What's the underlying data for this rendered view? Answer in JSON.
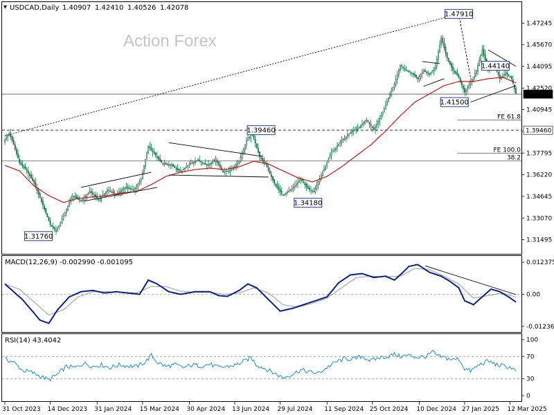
{
  "chart_data": {
    "type": "candlestick",
    "header": {
      "symbol": "USDCAD,Daily",
      "open": "1.40907",
      "high": "1.42410",
      "low": "1.40526",
      "close": "1.42078"
    },
    "watermark": "Action Forex",
    "price_axis": {
      "ylim": [
        1.3072,
        1.4852
      ],
      "ticks": [
        "1.47245",
        "1.45670",
        "1.44095",
        "1.42520",
        "1.40945",
        "1.39370",
        "1.37795",
        "1.36220",
        "1.34645",
        "1.33070",
        "1.31495"
      ],
      "current_price": "1.42078",
      "level_label": "1.39460"
    },
    "date_axis": [
      "31 Oct 2023",
      "14 Dec 2023",
      "31 Jan 2024",
      "15 Mar 2024",
      "30 Apr 2024",
      "13 Jun 2024",
      "29 Jul 2024",
      "11 Sep 2024",
      "25 Oct 2024",
      "10 Dec 2024",
      "27 Jan 2025",
      "12 Mar 2025"
    ],
    "price_anchors": [
      [
        0,
        1.3875
      ],
      [
        3,
        1.3925
      ],
      [
        6,
        1.384
      ],
      [
        10,
        1.371
      ],
      [
        15,
        1.365
      ],
      [
        20,
        1.356
      ],
      [
        26,
        1.34
      ],
      [
        31,
        1.3258
      ],
      [
        35,
        1.321
      ],
      [
        40,
        1.332
      ],
      [
        46,
        1.347
      ],
      [
        52,
        1.343
      ],
      [
        58,
        1.35
      ],
      [
        64,
        1.344
      ],
      [
        70,
        1.351
      ],
      [
        76,
        1.348
      ],
      [
        82,
        1.353
      ],
      [
        88,
        1.351
      ],
      [
        93,
        1.359
      ],
      [
        98,
        1.383
      ],
      [
        103,
        1.376
      ],
      [
        108,
        1.37
      ],
      [
        114,
        1.369
      ],
      [
        120,
        1.364
      ],
      [
        126,
        1.37
      ],
      [
        132,
        1.373
      ],
      [
        138,
        1.369
      ],
      [
        144,
        1.373
      ],
      [
        149,
        1.364
      ],
      [
        155,
        1.366
      ],
      [
        160,
        1.372
      ],
      [
        165,
        1.387
      ],
      [
        169,
        1.392
      ],
      [
        174,
        1.375
      ],
      [
        178,
        1.37
      ],
      [
        184,
        1.356
      ],
      [
        190,
        1.347
      ],
      [
        196,
        1.352
      ],
      [
        202,
        1.359
      ],
      [
        207,
        1.352
      ],
      [
        211,
        1.35
      ],
      [
        217,
        1.364
      ],
      [
        223,
        1.378
      ],
      [
        229,
        1.386
      ],
      [
        235,
        1.392
      ],
      [
        241,
        1.396
      ],
      [
        247,
        1.402
      ],
      [
        252,
        1.395
      ],
      [
        257,
        1.405
      ],
      [
        262,
        1.418
      ],
      [
        266,
        1.428
      ],
      [
        270,
        1.442
      ],
      [
        274,
        1.438
      ],
      [
        278,
        1.436
      ],
      [
        282,
        1.432
      ],
      [
        286,
        1.438
      ],
      [
        290,
        1.435
      ],
      [
        294,
        1.441
      ],
      [
        298,
        1.462
      ],
      [
        302,
        1.447
      ],
      [
        306,
        1.438
      ],
      [
        310,
        1.433
      ],
      [
        314,
        1.422
      ],
      [
        318,
        1.429
      ],
      [
        322,
        1.438
      ],
      [
        326,
        1.453
      ],
      [
        330,
        1.438
      ],
      [
        334,
        1.443
      ],
      [
        338,
        1.432
      ],
      [
        342,
        1.436
      ],
      [
        346,
        1.432
      ],
      [
        349,
        1.421
      ]
    ],
    "ema_anchors": [
      [
        0,
        1.369
      ],
      [
        10,
        1.365
      ],
      [
        20,
        1.354
      ],
      [
        30,
        1.347
      ],
      [
        40,
        1.342
      ],
      [
        50,
        1.345
      ],
      [
        60,
        1.346
      ],
      [
        70,
        1.347
      ],
      [
        80,
        1.349
      ],
      [
        90,
        1.35
      ],
      [
        100,
        1.355
      ],
      [
        110,
        1.361
      ],
      [
        120,
        1.364
      ],
      [
        130,
        1.366
      ],
      [
        140,
        1.367
      ],
      [
        150,
        1.366
      ],
      [
        160,
        1.368
      ],
      [
        170,
        1.372
      ],
      [
        180,
        1.37
      ],
      [
        190,
        1.365
      ],
      [
        200,
        1.36
      ],
      [
        210,
        1.357
      ],
      [
        220,
        1.361
      ],
      [
        230,
        1.368
      ],
      [
        240,
        1.376
      ],
      [
        250,
        1.384
      ],
      [
        260,
        1.394
      ],
      [
        270,
        1.405
      ],
      [
        280,
        1.415
      ],
      [
        290,
        1.421
      ],
      [
        300,
        1.427
      ],
      [
        310,
        1.43
      ],
      [
        320,
        1.43
      ],
      [
        330,
        1.432
      ],
      [
        340,
        1.433
      ],
      [
        349,
        1.429
      ]
    ],
    "annotations": [
      {
        "label": "1.47910",
        "i": 310,
        "price": 1.4791
      },
      {
        "label": "1.44140",
        "i": 335,
        "price": 1.4414
      },
      {
        "label": "1.41500",
        "i": 307,
        "price": 1.415
      },
      {
        "label": "1.39460",
        "i": 175,
        "price": 1.3946
      },
      {
        "label": "1.34180",
        "i": 207,
        "price": 1.3418
      },
      {
        "label": "1.31760",
        "i": 23,
        "price": 1.3176
      }
    ],
    "fib_lines": [
      {
        "label": "FE 61.8",
        "price": 1.402,
        "i_start": 310
      },
      {
        "label": "FE 100.0",
        "price": 1.3778,
        "i_start": 310
      },
      {
        "label": "38.2",
        "price": 1.3722,
        "i_start": 0
      }
    ],
    "hlines": [
      {
        "price": 1.4208,
        "style": "solid"
      },
      {
        "price": 1.3946,
        "style": "dashed"
      },
      {
        "price": 1.3722,
        "style": "solid"
      }
    ],
    "trendlines": [
      {
        "style": "dotted",
        "from": [
          0,
          1.3905
        ],
        "to": [
          310,
          1.4791
        ]
      },
      {
        "style": "solid",
        "from": [
          52,
          1.353
        ],
        "to": [
          100,
          1.364
        ]
      },
      {
        "style": "solid",
        "from": [
          54,
          1.343
        ],
        "to": [
          104,
          1.353
        ]
      },
      {
        "style": "solid",
        "from": [
          112,
          1.3855
        ],
        "to": [
          176,
          1.3755
        ]
      },
      {
        "style": "solid",
        "from": [
          112,
          1.362
        ],
        "to": [
          180,
          1.3605
        ]
      },
      {
        "style": "solid",
        "from": [
          285,
          1.4445
        ],
        "to": [
          297,
          1.443
        ]
      },
      {
        "style": "solid",
        "from": [
          286,
          1.4265
        ],
        "to": [
          300,
          1.432
        ]
      },
      {
        "style": "dashed",
        "from": [
          310,
          1.4791
        ],
        "to": [
          318,
          1.433
        ]
      },
      {
        "style": "solid",
        "from": [
          330,
          1.453
        ],
        "to": [
          349,
          1.441
        ]
      },
      {
        "style": "solid",
        "from": [
          318,
          1.415
        ],
        "to": [
          349,
          1.427
        ]
      }
    ],
    "macd": {
      "label": "MACD(12,26,9) -0.002990 -0.001095",
      "ylim": [
        -0.0135,
        0.0135
      ],
      "ticks": [
        "0.012375",
        "0.00",
        "-0.012367"
      ],
      "main_anchors": [
        [
          0,
          0.004
        ],
        [
          6,
          0.001
        ],
        [
          12,
          -0.002
        ],
        [
          18,
          -0.006
        ],
        [
          24,
          -0.01
        ],
        [
          30,
          -0.0112
        ],
        [
          36,
          -0.006
        ],
        [
          44,
          -0.001
        ],
        [
          52,
          0.001
        ],
        [
          60,
          0.0015
        ],
        [
          68,
          0.0005
        ],
        [
          76,
          0.001
        ],
        [
          84,
          0.0005
        ],
        [
          92,
          0.0
        ],
        [
          98,
          0.0055
        ],
        [
          104,
          0.004
        ],
        [
          112,
          0.001
        ],
        [
          120,
          0.0
        ],
        [
          130,
          0.001
        ],
        [
          140,
          0.001
        ],
        [
          146,
          -0.0005
        ],
        [
          152,
          -0.0008
        ],
        [
          160,
          0.0015
        ],
        [
          166,
          0.004
        ],
        [
          172,
          0.0025
        ],
        [
          180,
          -0.002
        ],
        [
          188,
          -0.0065
        ],
        [
          196,
          -0.0055
        ],
        [
          204,
          -0.004
        ],
        [
          212,
          -0.0025
        ],
        [
          220,
          -0.001
        ],
        [
          228,
          0.0045
        ],
        [
          236,
          0.0075
        ],
        [
          244,
          0.008
        ],
        [
          252,
          0.0065
        ],
        [
          260,
          0.007
        ],
        [
          266,
          0.0055
        ],
        [
          270,
          0.0075
        ],
        [
          276,
          0.0108
        ],
        [
          282,
          0.0115
        ],
        [
          290,
          0.0085
        ],
        [
          298,
          0.007
        ],
        [
          304,
          0.005
        ],
        [
          310,
          0.0025
        ],
        [
          314,
          -0.0025
        ],
        [
          320,
          -0.004
        ],
        [
          326,
          -0.001
        ],
        [
          332,
          0.002
        ],
        [
          338,
          0.001
        ],
        [
          344,
          -0.001
        ],
        [
          349,
          -0.003
        ]
      ],
      "signal_anchors": [
        [
          0,
          0.004
        ],
        [
          10,
          0.002
        ],
        [
          20,
          -0.003
        ],
        [
          30,
          -0.008
        ],
        [
          40,
          -0.006
        ],
        [
          50,
          -0.001
        ],
        [
          60,
          0.001
        ],
        [
          70,
          0.001
        ],
        [
          80,
          0.0008
        ],
        [
          90,
          0.0005
        ],
        [
          100,
          0.003
        ],
        [
          110,
          0.003
        ],
        [
          120,
          0.0012
        ],
        [
          130,
          0.0008
        ],
        [
          140,
          0.0008
        ],
        [
          150,
          0.0
        ],
        [
          160,
          0.0005
        ],
        [
          170,
          0.0025
        ],
        [
          180,
          0.0005
        ],
        [
          190,
          -0.004
        ],
        [
          200,
          -0.005
        ],
        [
          210,
          -0.0035
        ],
        [
          220,
          -0.0015
        ],
        [
          230,
          0.0025
        ],
        [
          240,
          0.0065
        ],
        [
          250,
          0.007
        ],
        [
          260,
          0.0068
        ],
        [
          270,
          0.007
        ],
        [
          280,
          0.01
        ],
        [
          290,
          0.0095
        ],
        [
          300,
          0.007
        ],
        [
          310,
          0.004
        ],
        [
          320,
          -0.0015
        ],
        [
          330,
          -0.0005
        ],
        [
          340,
          0.0005
        ],
        [
          349,
          -0.0011
        ]
      ],
      "trendline": {
        "from": [
          287,
          0.011
        ],
        "to": [
          349,
          -0.0001
        ]
      }
    },
    "rsi": {
      "label": "RSI(14) 43.4042",
      "ylim": [
        0,
        100
      ],
      "ticks": [
        "100",
        "70",
        "30",
        "0"
      ],
      "levels": [
        70,
        30
      ],
      "anchors": [
        [
          0,
          65
        ],
        [
          6,
          60
        ],
        [
          12,
          45
        ],
        [
          18,
          42
        ],
        [
          24,
          35
        ],
        [
          30,
          28
        ],
        [
          36,
          38
        ],
        [
          42,
          52
        ],
        [
          48,
          50
        ],
        [
          54,
          58
        ],
        [
          60,
          52
        ],
        [
          66,
          55
        ],
        [
          72,
          50
        ],
        [
          78,
          55
        ],
        [
          84,
          53
        ],
        [
          90,
          52
        ],
        [
          96,
          60
        ],
        [
          100,
          72
        ],
        [
          104,
          60
        ],
        [
          110,
          52
        ],
        [
          116,
          55
        ],
        [
          122,
          50
        ],
        [
          128,
          55
        ],
        [
          134,
          53
        ],
        [
          140,
          56
        ],
        [
          146,
          50
        ],
        [
          152,
          52
        ],
        [
          158,
          55
        ],
        [
          164,
          62
        ],
        [
          168,
          68
        ],
        [
          172,
          55
        ],
        [
          178,
          48
        ],
        [
          184,
          40
        ],
        [
          190,
          32
        ],
        [
          196,
          38
        ],
        [
          202,
          46
        ],
        [
          208,
          42
        ],
        [
          214,
          40
        ],
        [
          220,
          50
        ],
        [
          226,
          60
        ],
        [
          232,
          66
        ],
        [
          238,
          65
        ],
        [
          244,
          70
        ],
        [
          250,
          62
        ],
        [
          256,
          68
        ],
        [
          262,
          70
        ],
        [
          266,
          74
        ],
        [
          270,
          70
        ],
        [
          276,
          72
        ],
        [
          282,
          68
        ],
        [
          288,
          70
        ],
        [
          292,
          78
        ],
        [
          296,
          70
        ],
        [
          300,
          68
        ],
        [
          306,
          64
        ],
        [
          310,
          66
        ],
        [
          314,
          48
        ],
        [
          318,
          44
        ],
        [
          324,
          55
        ],
        [
          330,
          62
        ],
        [
          336,
          55
        ],
        [
          342,
          52
        ],
        [
          346,
          50
        ],
        [
          349,
          43.4
        ]
      ]
    }
  }
}
